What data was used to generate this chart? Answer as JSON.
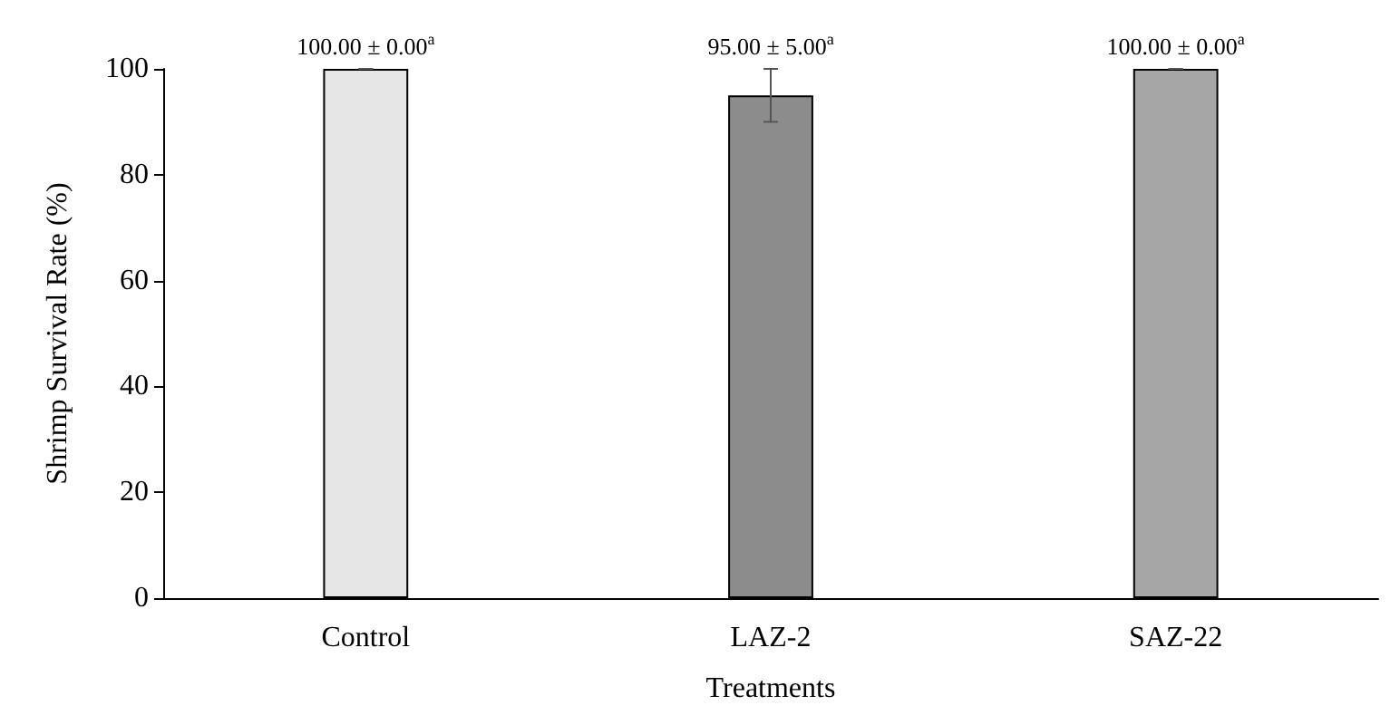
{
  "chart_data": {
    "type": "bar",
    "xlabel": "Treatments",
    "ylabel": "Shrimp Survival Rate (%)",
    "categories": [
      "Control",
      "LAZ-2",
      "SAZ-22"
    ],
    "values": [
      100,
      95,
      100
    ],
    "colors": [
      "#e6e6e6",
      "#8c8c8c",
      "#a6a6a6"
    ],
    "errors": [
      0,
      5,
      0
    ],
    "value_labels": [
      "100.00 ± 0.00$^{a}$",
      "95.00 ± 5.00$^{a}$",
      "100.00 ± 0.00$^{a}$"
    ],
    "ylim": [
      0,
      100
    ],
    "yticks": [
      0,
      20,
      40,
      60,
      80,
      100
    ],
    "grid": false
  }
}
